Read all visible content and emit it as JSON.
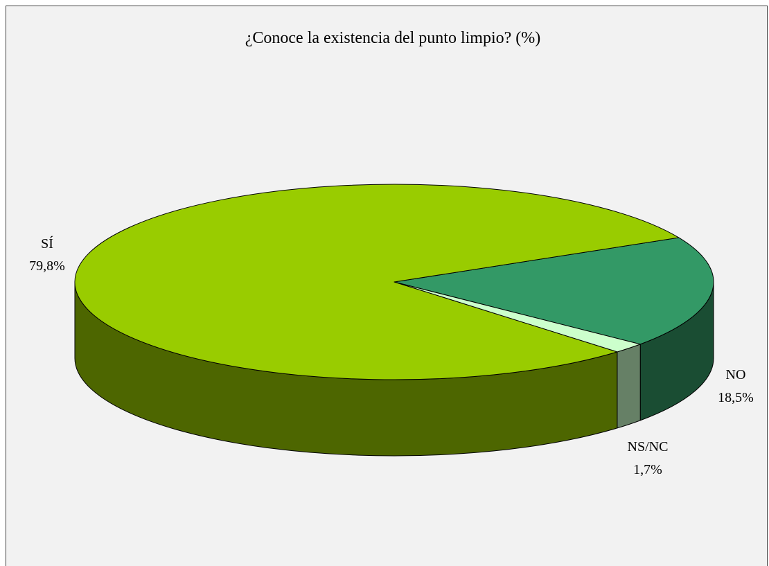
{
  "chart_data": {
    "type": "pie",
    "style": "3d",
    "title": "¿Conoce la existencia del punto limpio? (%)",
    "slices": [
      {
        "label": "SÍ",
        "value": 79.8,
        "value_label": "79,8%",
        "top_color": "#99cc00",
        "side_color": "#4d6600"
      },
      {
        "label": "NO",
        "value": 18.5,
        "value_label": "18,5%",
        "top_color": "#339966",
        "side_color": "#1a4d33"
      },
      {
        "label": "NS/NC",
        "value": 1.7,
        "value_label": "1,7%",
        "top_color": "#ccffcc",
        "side_color": "#668066"
      }
    ],
    "background_color": "#f2f2f2",
    "legend": "none"
  }
}
